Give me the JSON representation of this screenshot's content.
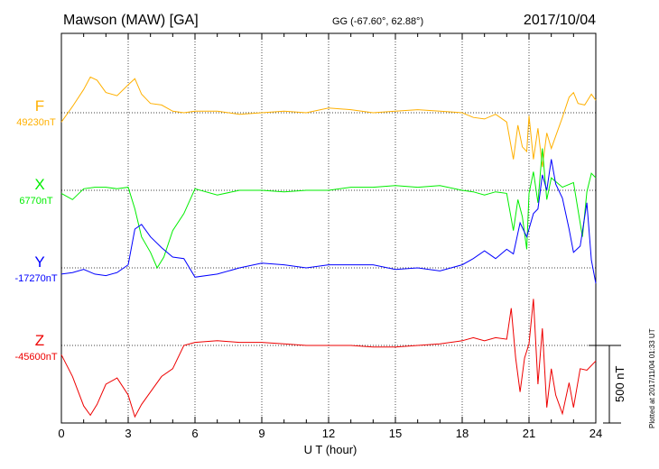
{
  "header": {
    "station": "Mawson (MAW)  [GA]",
    "coords": "GG (-67.60°,  62.88°)",
    "date": "2017/10/04"
  },
  "footer_note": "Plotted at 2017/11/04 01:33 UT",
  "chart_data": {
    "type": "line",
    "xlabel": "U T (hour)",
    "xlim": [
      0,
      24
    ],
    "xticks": [
      "0",
      "3",
      "6",
      "9",
      "12",
      "15",
      "18",
      "21",
      "24"
    ],
    "scale_label": "500 nT",
    "grid": "dotted vertical lines at 3-hour ticks; dotted baseline per component",
    "series": [
      {
        "name": "F",
        "baseline_label": "49230nT",
        "color": "#ffb000",
        "x": [
          0,
          0.5,
          1.0,
          1.3,
          1.6,
          2.0,
          2.5,
          3.0,
          3.3,
          3.6,
          4.0,
          4.5,
          5.0,
          5.5,
          6.0,
          7.0,
          8.0,
          9.0,
          10.0,
          11.0,
          12.0,
          13.0,
          14.0,
          15.0,
          16.0,
          17.0,
          18.0,
          18.5,
          19.0,
          19.5,
          20.0,
          20.3,
          20.5,
          20.7,
          20.9,
          21.0,
          21.2,
          21.4,
          21.6,
          21.8,
          22.0,
          22.2,
          22.5,
          22.8,
          23.0,
          23.2,
          23.5,
          23.8,
          24.0
        ],
        "y": [
          -60,
          40,
          150,
          230,
          210,
          130,
          110,
          180,
          220,
          120,
          60,
          50,
          10,
          0,
          10,
          10,
          -10,
          0,
          10,
          0,
          30,
          20,
          0,
          10,
          20,
          10,
          0,
          -30,
          -40,
          -10,
          -60,
          -300,
          -80,
          -220,
          -250,
          -20,
          -300,
          -100,
          -350,
          -130,
          -230,
          -150,
          -30,
          100,
          130,
          60,
          50,
          120,
          80
        ]
      },
      {
        "name": "X",
        "baseline_label": "6770nT",
        "color": "#00ee00",
        "x": [
          0,
          0.5,
          1.0,
          1.5,
          2.0,
          2.5,
          3.0,
          3.3,
          3.6,
          4.0,
          4.3,
          4.6,
          5.0,
          5.5,
          6.0,
          7.0,
          8.0,
          9.0,
          10.0,
          11.0,
          12.0,
          13.0,
          14.0,
          15.0,
          16.0,
          17.0,
          18.0,
          18.5,
          19.0,
          19.5,
          20.0,
          20.3,
          20.5,
          20.7,
          20.9,
          21.0,
          21.2,
          21.4,
          21.6,
          21.8,
          22.0,
          22.5,
          23.0,
          23.4,
          23.6,
          23.8,
          24.0
        ],
        "y": [
          -20,
          -60,
          10,
          20,
          20,
          10,
          20,
          -120,
          -300,
          -400,
          -500,
          -430,
          -260,
          -150,
          10,
          -30,
          0,
          0,
          -10,
          0,
          0,
          20,
          20,
          30,
          20,
          30,
          0,
          -10,
          -30,
          -10,
          -20,
          -260,
          -60,
          -170,
          -380,
          -20,
          120,
          -80,
          270,
          -60,
          80,
          20,
          50,
          -300,
          -10,
          110,
          80
        ]
      },
      {
        "name": "Y",
        "baseline_label": "-17270nT",
        "color": "#0000ff",
        "x": [
          0,
          0.5,
          1.0,
          1.5,
          2.0,
          2.5,
          3.0,
          3.3,
          3.6,
          4.0,
          4.5,
          5.0,
          5.5,
          6.0,
          7.0,
          8.0,
          9.0,
          10.0,
          11.0,
          12.0,
          13.0,
          14.0,
          15.0,
          16.0,
          17.0,
          18.0,
          18.5,
          19.0,
          19.5,
          20.0,
          20.3,
          20.6,
          20.9,
          21.2,
          21.4,
          21.6,
          21.8,
          22.0,
          22.2,
          22.5,
          22.8,
          23.0,
          23.3,
          23.6,
          23.8,
          24.0
        ],
        "y": [
          -40,
          -30,
          -10,
          -40,
          -50,
          -30,
          20,
          250,
          280,
          200,
          130,
          70,
          60,
          -60,
          -40,
          0,
          30,
          20,
          0,
          20,
          20,
          20,
          -10,
          0,
          -20,
          20,
          60,
          110,
          60,
          120,
          90,
          290,
          200,
          350,
          380,
          600,
          500,
          700,
          540,
          450,
          250,
          100,
          140,
          420,
          50,
          -100
        ]
      },
      {
        "name": "Z",
        "baseline_label": "-45600nT",
        "color": "#ee0000",
        "x": [
          0,
          0.5,
          1.0,
          1.3,
          1.6,
          2.0,
          2.5,
          3.0,
          3.3,
          3.6,
          4.0,
          4.5,
          5.0,
          5.5,
          6.0,
          7.0,
          8.0,
          9.0,
          10.0,
          11.0,
          12.0,
          13.0,
          14.0,
          15.0,
          16.0,
          17.0,
          18.0,
          18.5,
          19.0,
          19.5,
          20.0,
          20.2,
          20.4,
          20.6,
          20.8,
          21.0,
          21.2,
          21.4,
          21.6,
          21.8,
          22.0,
          22.2,
          22.5,
          22.8,
          23.0,
          23.3,
          23.6,
          24.0
        ],
        "y": [
          -60,
          -200,
          -390,
          -450,
          -380,
          -250,
          -210,
          -320,
          -460,
          -380,
          -300,
          -200,
          -150,
          0,
          20,
          30,
          20,
          20,
          10,
          0,
          0,
          0,
          -10,
          -10,
          0,
          10,
          30,
          50,
          30,
          50,
          40,
          240,
          -80,
          -300,
          -80,
          10,
          300,
          -250,
          110,
          -400,
          -150,
          -320,
          -440,
          -240,
          -400,
          -150,
          -160,
          -100
        ]
      }
    ]
  }
}
